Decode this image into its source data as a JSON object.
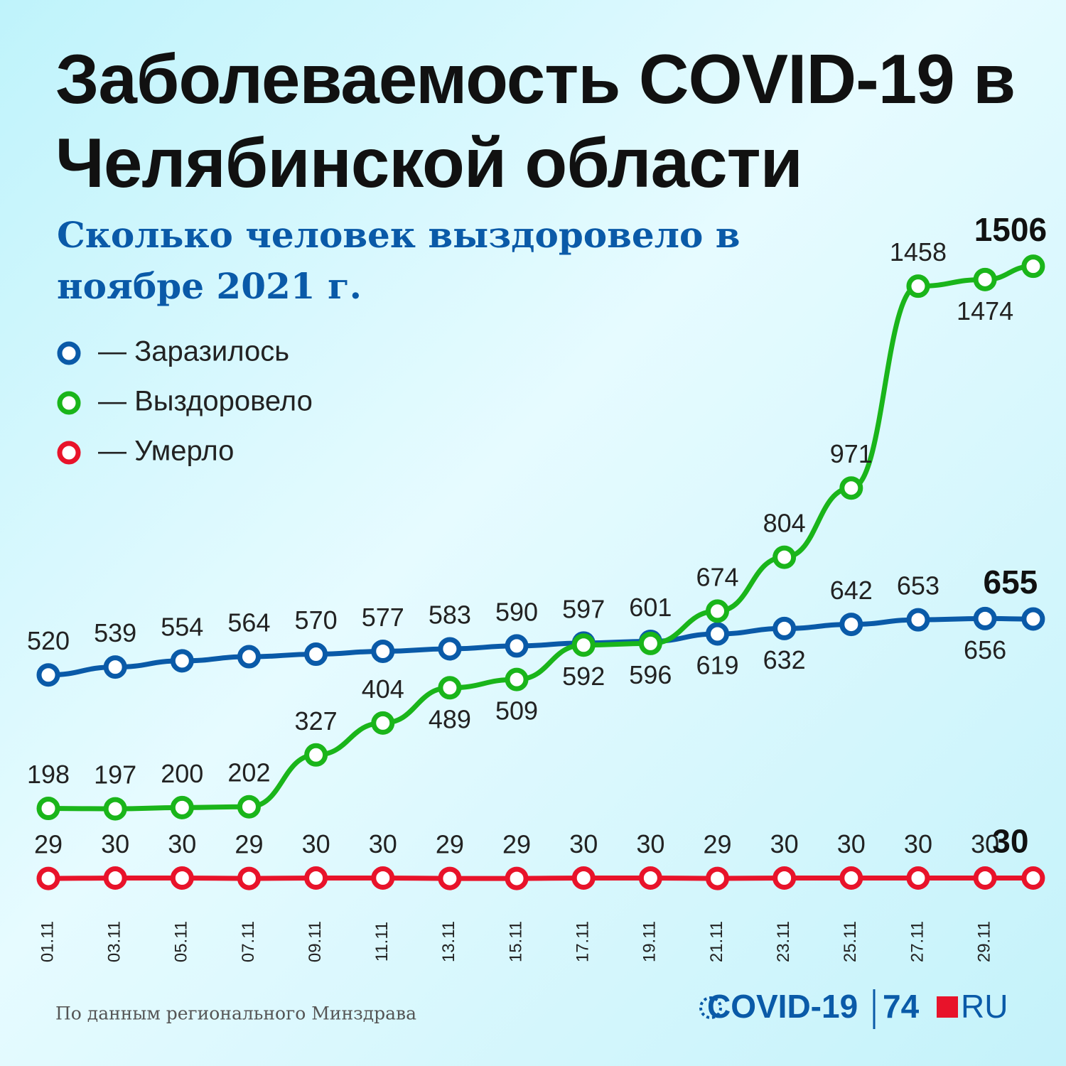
{
  "chart_data": {
    "type": "line",
    "title": "Заболеваемость COVID-19 в Челябинской области",
    "subtitle": "Сколько человек выздоровело в ноябре 2021 г.",
    "categories": [
      "01.11",
      "03.11",
      "05.11",
      "07.11",
      "09.11",
      "11.11",
      "13.11",
      "15.11",
      "17.11",
      "19.11",
      "21.11",
      "23.11",
      "25.11",
      "27.11",
      "29.11",
      null
    ],
    "series": [
      {
        "name": "— Заразилось",
        "color": "#0a5aa8",
        "values": [
          520,
          539,
          554,
          564,
          570,
          577,
          583,
          590,
          597,
          601,
          619,
          632,
          642,
          653,
          656,
          655
        ]
      },
      {
        "name": "— Выздоровело",
        "color": "#1ab51a",
        "values": [
          198,
          197,
          200,
          202,
          327,
          404,
          489,
          509,
          592,
          596,
          674,
          804,
          971,
          1458,
          1474,
          1506
        ]
      },
      {
        "name": "— Умерло",
        "color": "#e8132a",
        "values": [
          29,
          30,
          30,
          29,
          30,
          30,
          29,
          29,
          30,
          30,
          29,
          30,
          30,
          30,
          30,
          30
        ]
      }
    ],
    "ylim": [
      0,
      1550
    ],
    "source": "По данным регионального Минздрава",
    "logo": {
      "left": "COVID-19",
      "number": "74",
      "right": "RU"
    }
  }
}
